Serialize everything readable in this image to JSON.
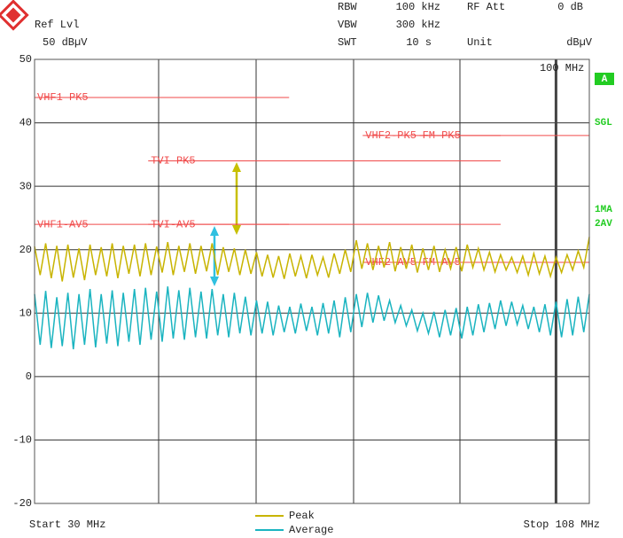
{
  "chart_data": {
    "type": "line",
    "ref_level": {
      "label": "Ref Lvl",
      "value": "50 dBµV"
    },
    "settings": [
      {
        "label": "RBW",
        "value": "100 kHz"
      },
      {
        "label": "VBW",
        "value": "300 kHz"
      },
      {
        "label": "SWT",
        "value": "10 s"
      },
      {
        "label": "RF Att",
        "value": "0 dB"
      },
      {
        "label": "Unit",
        "value": "dBµV"
      }
    ],
    "status": [
      "A",
      "SGL",
      "1MA",
      "2AV"
    ],
    "start_label": "Start 30 MHz",
    "stop_label": "Stop 108 MHz",
    "xscale": "log",
    "xlim": [
      30,
      108
    ],
    "ylim": [
      -20,
      50
    ],
    "yticks": [
      50,
      40,
      30,
      20,
      10,
      0,
      -10,
      -20
    ],
    "grid": true,
    "marker": {
      "value": 100,
      "label": "100 MHz"
    },
    "limit_color": "#f04a4a",
    "limit_lines": [
      {
        "name": "VHF1-PK5",
        "value": 44,
        "x": [
          30,
          54
        ]
      },
      {
        "name": "VHF2-PK5",
        "value": 38,
        "x": [
          64,
          88
        ]
      },
      {
        "name": "FM-PK5",
        "value": 38,
        "x": [
          73,
          108
        ]
      },
      {
        "name": "TVI-PK5",
        "value": 34,
        "x": [
          39,
          88
        ]
      },
      {
        "name": "VHF1-AV5",
        "value": 24,
        "x": [
          30,
          54
        ]
      },
      {
        "name": "TVI-AV5",
        "value": 24,
        "x": [
          39,
          88
        ]
      },
      {
        "name": "VHF2-AV5",
        "value": 18,
        "x": [
          64,
          88
        ]
      },
      {
        "name": "FM-AV5",
        "value": 18,
        "x": [
          73,
          108
        ]
      }
    ],
    "x": [
      30,
      30.39,
      30.78,
      31.18,
      31.58,
      31.98,
      32.4,
      32.81,
      33.24,
      33.67,
      34.1,
      34.54,
      34.99,
      35.44,
      35.89,
      36.36,
      36.82,
      37.3,
      37.78,
      38.27,
      38.76,
      39.26,
      39.77,
      40.28,
      40.8,
      41.32,
      41.86,
      42.4,
      42.94,
      43.5,
      44.06,
      44.63,
      45.2,
      45.79,
      46.38,
      46.97,
      47.58,
      48.19,
      48.81,
      49.44,
      50.08,
      50.73,
      51.38,
      52.04,
      52.71,
      53.39,
      54.08,
      54.78,
      55.48,
      56.2,
      56.92,
      57.65,
      58.4,
      59.15,
      59.91,
      60.69,
      61.47,
      62.26,
      63.06,
      63.87,
      64.7,
      65.53,
      66.38,
      67.24,
      68.1,
      68.98,
      69.87,
      70.77,
      71.68,
      72.61,
      73.54,
      74.49,
      75.45,
      76.42,
      77.41,
      78.4,
      79.41,
      80.44,
      81.47,
      82.53,
      83.59,
      84.67,
      85.76,
      86.87,
      87.99,
      89.12,
      90.27,
      91.43,
      92.61,
      93.8,
      95.01,
      96.23,
      97.48,
      98.73,
      100.01,
      101.29,
      102.6,
      103.92,
      105.26,
      106.62,
      108
    ],
    "series": [
      {
        "name": "Peak",
        "color": "#c8b400",
        "values": [
          20.5,
          16.0,
          21.0,
          15.5,
          20.6,
          15.0,
          20.8,
          15.6,
          20.2,
          15.2,
          20.8,
          16.0,
          20.4,
          15.8,
          21.0,
          15.5,
          20.6,
          16.2,
          20.8,
          15.8,
          21.0,
          16.0,
          20.5,
          16.4,
          21.2,
          16.0,
          20.6,
          16.5,
          21.0,
          16.2,
          20.6,
          16.6,
          21.0,
          16.0,
          20.4,
          16.5,
          20.2,
          16.0,
          20.0,
          16.2,
          19.6,
          15.8,
          19.2,
          15.6,
          19.0,
          15.4,
          19.4,
          15.8,
          19.0,
          15.5,
          19.2,
          16.0,
          18.8,
          15.6,
          19.4,
          16.2,
          20.0,
          16.5,
          21.5,
          17.0,
          21.0,
          16.8,
          20.6,
          17.2,
          21.2,
          16.6,
          20.4,
          17.0,
          20.8,
          16.4,
          20.2,
          16.8,
          20.6,
          16.5,
          20.0,
          17.0,
          20.4,
          16.6,
          20.8,
          17.2,
          20.2,
          16.8,
          19.6,
          16.5,
          19.2,
          16.8,
          18.8,
          16.4,
          19.0,
          16.0,
          19.4,
          16.2,
          19.0,
          15.8,
          18.8,
          16.4,
          19.2,
          16.8,
          19.8,
          17.2,
          22.0
        ]
      },
      {
        "name": "Average",
        "color": "#1ab4c0",
        "values": [
          13.0,
          5.0,
          13.5,
          4.5,
          12.5,
          4.8,
          13.2,
          4.3,
          13.0,
          5.0,
          13.8,
          4.6,
          13.0,
          5.2,
          13.6,
          4.8,
          13.2,
          5.5,
          13.8,
          5.0,
          14.0,
          5.8,
          13.4,
          5.5,
          14.2,
          6.0,
          13.6,
          5.8,
          14.0,
          6.2,
          13.4,
          6.0,
          13.8,
          6.5,
          13.0,
          6.2,
          13.2,
          6.8,
          12.6,
          6.5,
          12.0,
          6.8,
          11.8,
          6.5,
          11.2,
          7.0,
          11.0,
          6.8,
          11.5,
          7.2,
          11.0,
          6.5,
          11.6,
          6.8,
          12.0,
          6.2,
          12.5,
          7.0,
          13.0,
          7.8,
          13.2,
          8.5,
          12.8,
          8.8,
          12.0,
          8.5,
          11.2,
          8.0,
          10.5,
          7.2,
          10.0,
          6.8,
          10.2,
          6.2,
          10.5,
          6.5,
          10.8,
          6.0,
          11.0,
          6.5,
          11.4,
          7.0,
          11.6,
          7.5,
          12.0,
          8.0,
          11.8,
          8.2,
          11.2,
          7.5,
          11.0,
          7.0,
          11.4,
          6.5,
          11.8,
          6.2,
          12.2,
          6.5,
          12.6,
          7.0,
          13.0
        ]
      }
    ]
  }
}
